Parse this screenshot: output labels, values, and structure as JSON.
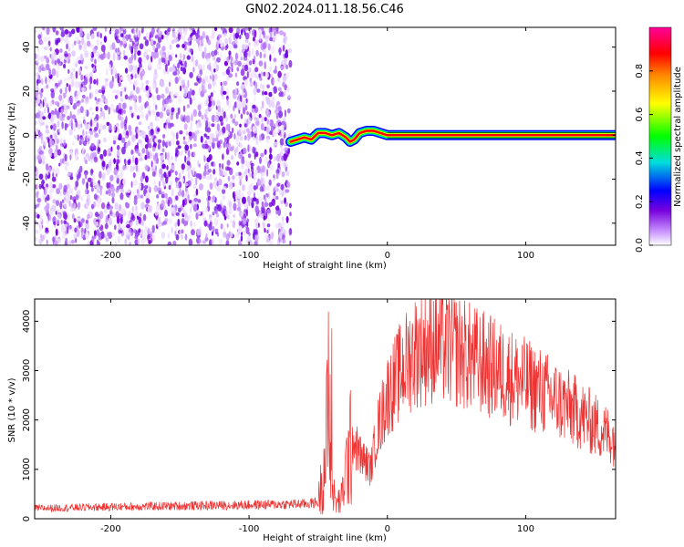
{
  "title": "GN02.2024.011.18.56.C46",
  "chart_data": [
    {
      "type": "heatmap",
      "xlabel": "Height of straight line (km)",
      "ylabel": "Frequency (Hz)",
      "xlim": [
        -255,
        165
      ],
      "ylim": [
        -50,
        49
      ],
      "xticks": [
        -200,
        -100,
        0,
        100
      ],
      "yticks": [
        -40,
        -20,
        0,
        20,
        40
      ],
      "noise_region_x": [
        -255,
        -70
      ],
      "signal_track": [
        {
          "x": -70,
          "y": -3
        },
        {
          "x": -65,
          "y": -2
        },
        {
          "x": -60,
          "y": -1
        },
        {
          "x": -55,
          "y": -2
        },
        {
          "x": -50,
          "y": 1
        },
        {
          "x": -45,
          "y": 1
        },
        {
          "x": -40,
          "y": 0
        },
        {
          "x": -35,
          "y": 1
        },
        {
          "x": -30,
          "y": -1
        },
        {
          "x": -27,
          "y": -3
        },
        {
          "x": -24,
          "y": -2
        },
        {
          "x": -20,
          "y": 1
        },
        {
          "x": -15,
          "y": 2
        },
        {
          "x": -10,
          "y": 2
        },
        {
          "x": -5,
          "y": 1
        },
        {
          "x": 0,
          "y": 0
        },
        {
          "x": 165,
          "y": 0
        }
      ],
      "colorbar": {
        "label": "Normalized spectral amplitude",
        "range": [
          0,
          1
        ],
        "ticks": [
          "0.0",
          "0.2",
          "0.4",
          "0.6",
          "0.8"
        ],
        "colors": [
          "#ffffff",
          "#cc99ff",
          "#7700dd",
          "#0000ff",
          "#00dddd",
          "#00ff00",
          "#ffff00",
          "#ff8800",
          "#ff0000",
          "#ff0099"
        ]
      }
    },
    {
      "type": "line",
      "xlabel": "Height of straight line (km)",
      "ylabel": "SNR (10 * v/v)",
      "xlim": [
        -255,
        165
      ],
      "ylim": [
        0,
        4450
      ],
      "xticks": [
        -200,
        -100,
        0,
        100
      ],
      "yticks": [
        0,
        1000,
        2000,
        3000,
        4000
      ],
      "color": "#ee3333",
      "profile": [
        {
          "x": -255,
          "y": 210
        },
        {
          "x": -200,
          "y": 240
        },
        {
          "x": -150,
          "y": 260
        },
        {
          "x": -100,
          "y": 280
        },
        {
          "x": -60,
          "y": 300
        },
        {
          "x": -50,
          "y": 330
        },
        {
          "x": -45,
          "y": 1200
        },
        {
          "x": -42,
          "y": 2500
        },
        {
          "x": -40,
          "y": 600
        },
        {
          "x": -37,
          "y": 300
        },
        {
          "x": -33,
          "y": 400
        },
        {
          "x": -30,
          "y": 1000
        },
        {
          "x": -25,
          "y": 1600
        },
        {
          "x": -20,
          "y": 1300
        },
        {
          "x": -12,
          "y": 1000
        },
        {
          "x": -8,
          "y": 1700
        },
        {
          "x": 0,
          "y": 2500
        },
        {
          "x": 10,
          "y": 3000
        },
        {
          "x": 20,
          "y": 3400
        },
        {
          "x": 35,
          "y": 3550
        },
        {
          "x": 50,
          "y": 3400
        },
        {
          "x": 80,
          "y": 3000
        },
        {
          "x": 110,
          "y": 2600
        },
        {
          "x": 140,
          "y": 2100
        },
        {
          "x": 165,
          "y": 1600
        }
      ]
    }
  ]
}
